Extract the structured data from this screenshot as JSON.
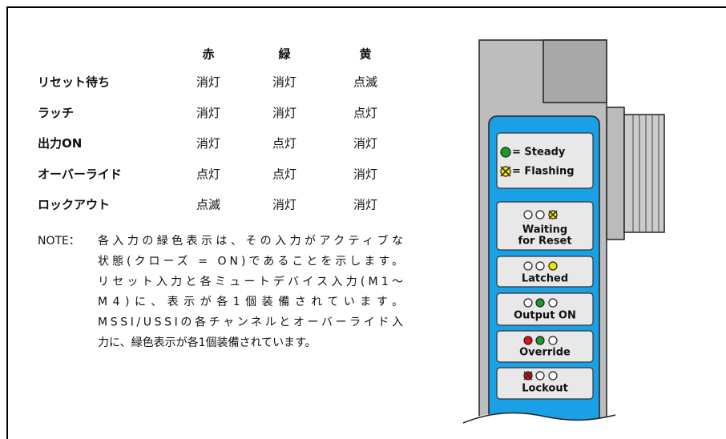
{
  "table": {
    "header": [
      "赤",
      "緑",
      "黄"
    ],
    "rows": [
      [
        "リセット待ち",
        "消灯",
        "消灯",
        "点滅"
      ],
      [
        "ラッチ",
        "消灯",
        "消灯",
        "点灯"
      ],
      [
        "出力ON",
        "消灯",
        "点灯",
        "消灯"
      ],
      [
        "オーバーライド",
        "点灯",
        "点灯",
        "消灯"
      ],
      [
        "ロックアウト",
        "点滅",
        "消灯",
        "消灯"
      ]
    ]
  },
  "note": {
    "label": "NOTE：",
    "lines": [
      "各入力の緑色表示は、その入力がアクティブな",
      "状態(クローズ = ON)であることを示します。",
      "リセット入力と各ミュートデバイス入力(M1～",
      "M4)に、表示が各1個装備されています。",
      "MSSI/USSIの各チャンネルとオーバーライド入",
      "力に、緑色表示が各1個装備されています。"
    ]
  },
  "device": {
    "legend": [
      "= Steady",
      "= Flashing"
    ],
    "panels": [
      [
        "Waiting",
        "for Reset"
      ],
      [
        "Latched"
      ],
      [
        "Output ON"
      ],
      [
        "Override"
      ],
      [
        "Lockout"
      ]
    ]
  }
}
